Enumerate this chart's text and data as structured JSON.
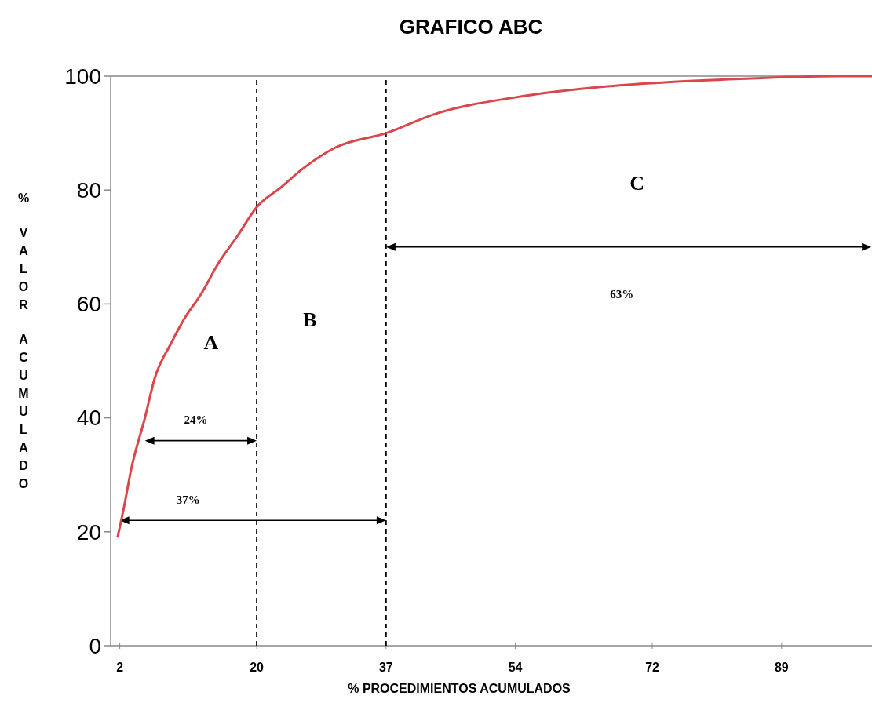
{
  "chart_data": {
    "type": "line",
    "title": "GRAFICO ABC",
    "xlabel": "% PROCEDIMIENTOS ACUMULADOS",
    "ylabel": "% VALOR ACUMULADO",
    "x": [
      1.7,
      2.5,
      3.5,
      5.3,
      6.6,
      8.7,
      10.3,
      12.8,
      14.9,
      17.5,
      20,
      23.2,
      26.3,
      30.4,
      37,
      43.8,
      54.1,
      64.4,
      74.8,
      85.1,
      96.4,
      101.4
    ],
    "series": [
      {
        "color": "#d9474b",
        "values": [
          19,
          24,
          31,
          40,
          47,
          53,
          57,
          62,
          67,
          72,
          77,
          80.5,
          84,
          87.5,
          90,
          93.5,
          96.3,
          98,
          99,
          99.6,
          100,
          100
        ]
      }
    ],
    "xlim": [
      0.8,
      101.4
    ],
    "xticks": [
      2,
      20,
      37,
      54,
      72,
      89
    ],
    "ylim": [
      0,
      100
    ],
    "yticks": [
      0,
      20,
      40,
      60,
      80,
      100
    ],
    "grid": false,
    "marker": "none",
    "line_style": "solid",
    "ref_lines": [
      {
        "axis": "x",
        "value": 20,
        "color": "#000000",
        "line_style": "dashed"
      },
      {
        "axis": "x",
        "value": 37,
        "color": "#000000",
        "line_style": "dashed"
      }
    ],
    "annotations": [
      "A",
      "B",
      "C",
      "24%",
      "37%",
      "63%"
    ]
  }
}
